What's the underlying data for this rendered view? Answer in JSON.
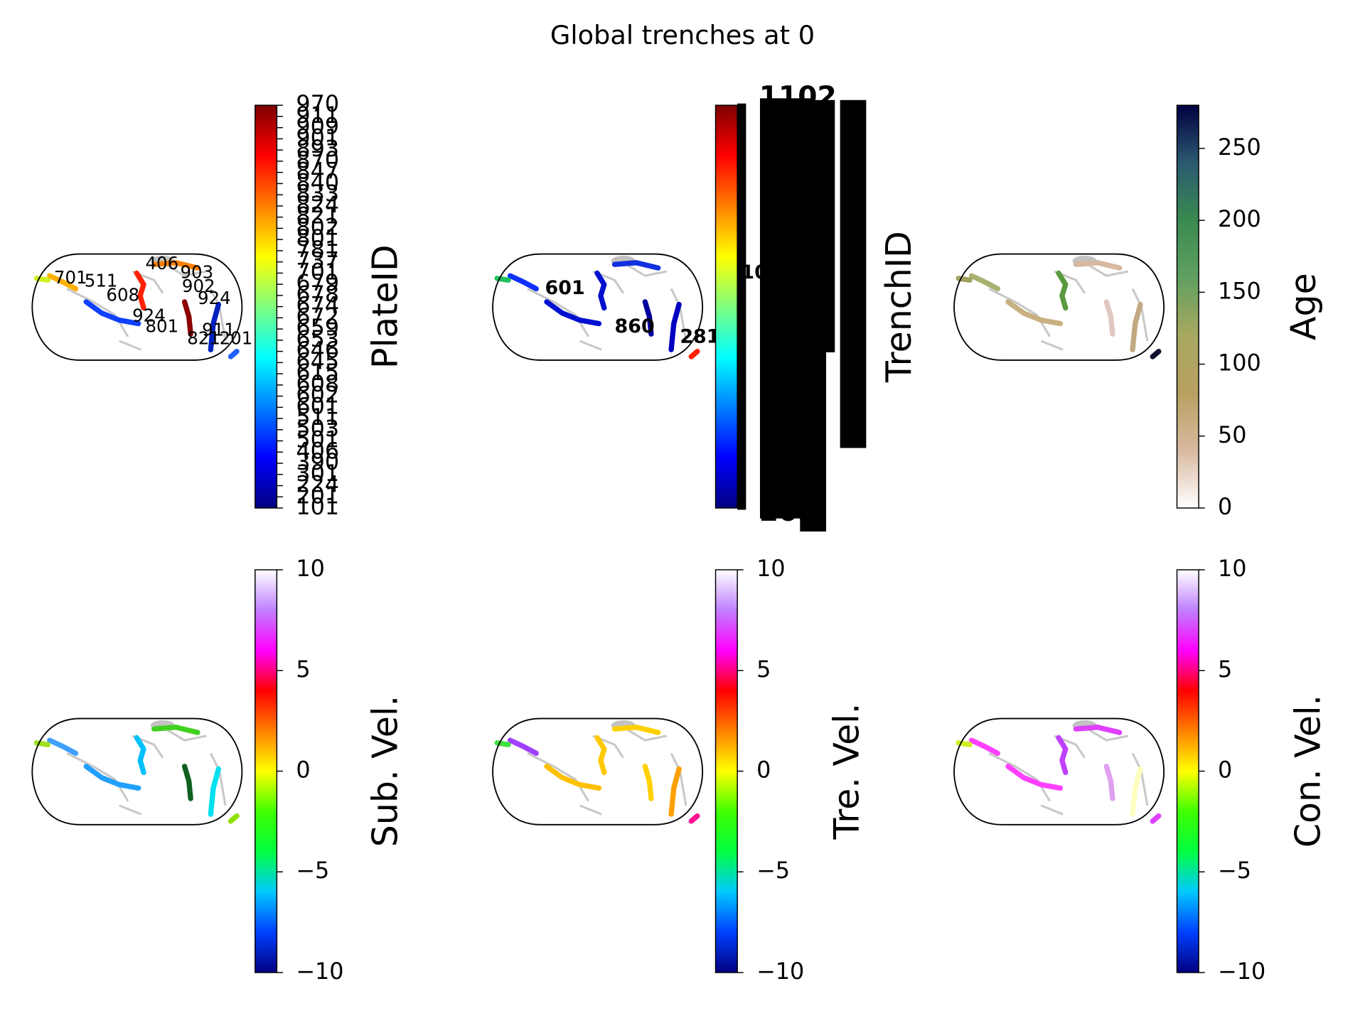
{
  "title": "Global trenches at 0",
  "chart_data": [
    {
      "type": "colorbar-discrete",
      "label": "PlateID",
      "colors": [
        "#00007f",
        "#0000ff",
        "#007fff",
        "#00ffff",
        "#7fff7f",
        "#ffff00",
        "#ff7f00",
        "#ff0000",
        "#7f0000"
      ],
      "levels": [
        "101",
        "201",
        "224",
        "301",
        "390",
        "406",
        "501",
        "503",
        "511",
        "601",
        "602",
        "608",
        "615",
        "645",
        "646",
        "653",
        "659",
        "672",
        "674",
        "678",
        "679",
        "701",
        "737",
        "781",
        "801",
        "802",
        "821",
        "824",
        "833",
        "840",
        "847",
        "870",
        "893",
        "901",
        "909",
        "911",
        "970"
      ],
      "annotations": [
        "406",
        "903",
        "701",
        "511",
        "608",
        "902",
        "924",
        "924",
        "801",
        "911",
        "821",
        "201"
      ],
      "trench_colors": [
        "#ff2000",
        "#1040ff",
        "#ffb000",
        "#8b0000",
        "#ff8000",
        "#0020c0",
        "#d0f020",
        "#2060ff"
      ]
    },
    {
      "type": "colorbar-discrete",
      "label": "TrenchID",
      "colors": [
        "#00007f",
        "#0000ff",
        "#007fff",
        "#00ffff",
        "#7fff7f",
        "#ffff00",
        "#ff7f00",
        "#ff0000",
        "#7f0000"
      ],
      "levels": [
        "202",
        "1102"
      ],
      "annotations": [
        "2815",
        "860",
        "601",
        "1102"
      ],
      "trench_colors": [
        "#0010d0",
        "#0010d0",
        "#1030ff",
        "#0000a0",
        "#1030e0",
        "#0000c0",
        "#20c060",
        "#ff2000"
      ]
    },
    {
      "type": "colorbar",
      "label": "Age",
      "colors": [
        "#ffffff",
        "#d9b9a0",
        "#b8a060",
        "#a8a860",
        "#60a060",
        "#3a8a50",
        "#2a5a70",
        "#000040"
      ],
      "ylim": [
        0,
        280
      ],
      "yticks": [
        0,
        50,
        100,
        150,
        200,
        250
      ],
      "trench_colors": [
        "#5a9a40",
        "#c8b080",
        "#a8b070",
        "#e0c8c0",
        "#d8b8a0",
        "#c0a880",
        "#a0a060",
        "#101030"
      ]
    },
    {
      "type": "colorbar",
      "label": "Sub. Vel.",
      "colors": [
        "#000080",
        "#0040ff",
        "#00c8ff",
        "#00ff40",
        "#40ff00",
        "#ffff00",
        "#ff8000",
        "#ff0000",
        "#ff00ff",
        "#c080ff",
        "#ffffff"
      ],
      "ylim": [
        -10,
        10
      ],
      "yticks": [
        {
          "value": -10,
          "label": "−10"
        },
        {
          "value": -5,
          "label": "−5"
        },
        0,
        5,
        10
      ],
      "trench_colors": [
        "#00c0ff",
        "#20a0ff",
        "#40a0ff",
        "#106020",
        "#40d020",
        "#00e0f0",
        "#a0e020",
        "#90e000"
      ]
    },
    {
      "type": "colorbar",
      "label": "Tre. Vel.",
      "colors": [
        "#000080",
        "#0040ff",
        "#00c8ff",
        "#00ff40",
        "#40ff00",
        "#ffff00",
        "#ff8000",
        "#ff0000",
        "#ff00ff",
        "#c080ff",
        "#ffffff"
      ],
      "ylim": [
        -10,
        10
      ],
      "yticks": [
        {
          "value": -10,
          "label": "−10"
        },
        {
          "value": -5,
          "label": "−5"
        },
        0,
        5,
        10
      ],
      "trench_colors": [
        "#ffc800",
        "#ffc000",
        "#a040ff",
        "#ffd000",
        "#ffd000",
        "#ffa000",
        "#40e040",
        "#ff1090"
      ]
    },
    {
      "type": "colorbar",
      "label": "Con. Vel.",
      "colors": [
        "#000080",
        "#0040ff",
        "#00c8ff",
        "#00ff40",
        "#40ff00",
        "#ffff00",
        "#ff8000",
        "#ff0000",
        "#ff00ff",
        "#c080ff",
        "#ffffff"
      ],
      "ylim": [
        -10,
        10
      ],
      "yticks": [
        {
          "value": -10,
          "label": "−10"
        },
        {
          "value": -5,
          "label": "−5"
        },
        0,
        5,
        10
      ],
      "trench_colors": [
        "#c040ff",
        "#ff40ff",
        "#ff40ff",
        "#e0a0f0",
        "#e040ff",
        "#ffffc0",
        "#d0f020",
        "#e040ff"
      ]
    }
  ]
}
